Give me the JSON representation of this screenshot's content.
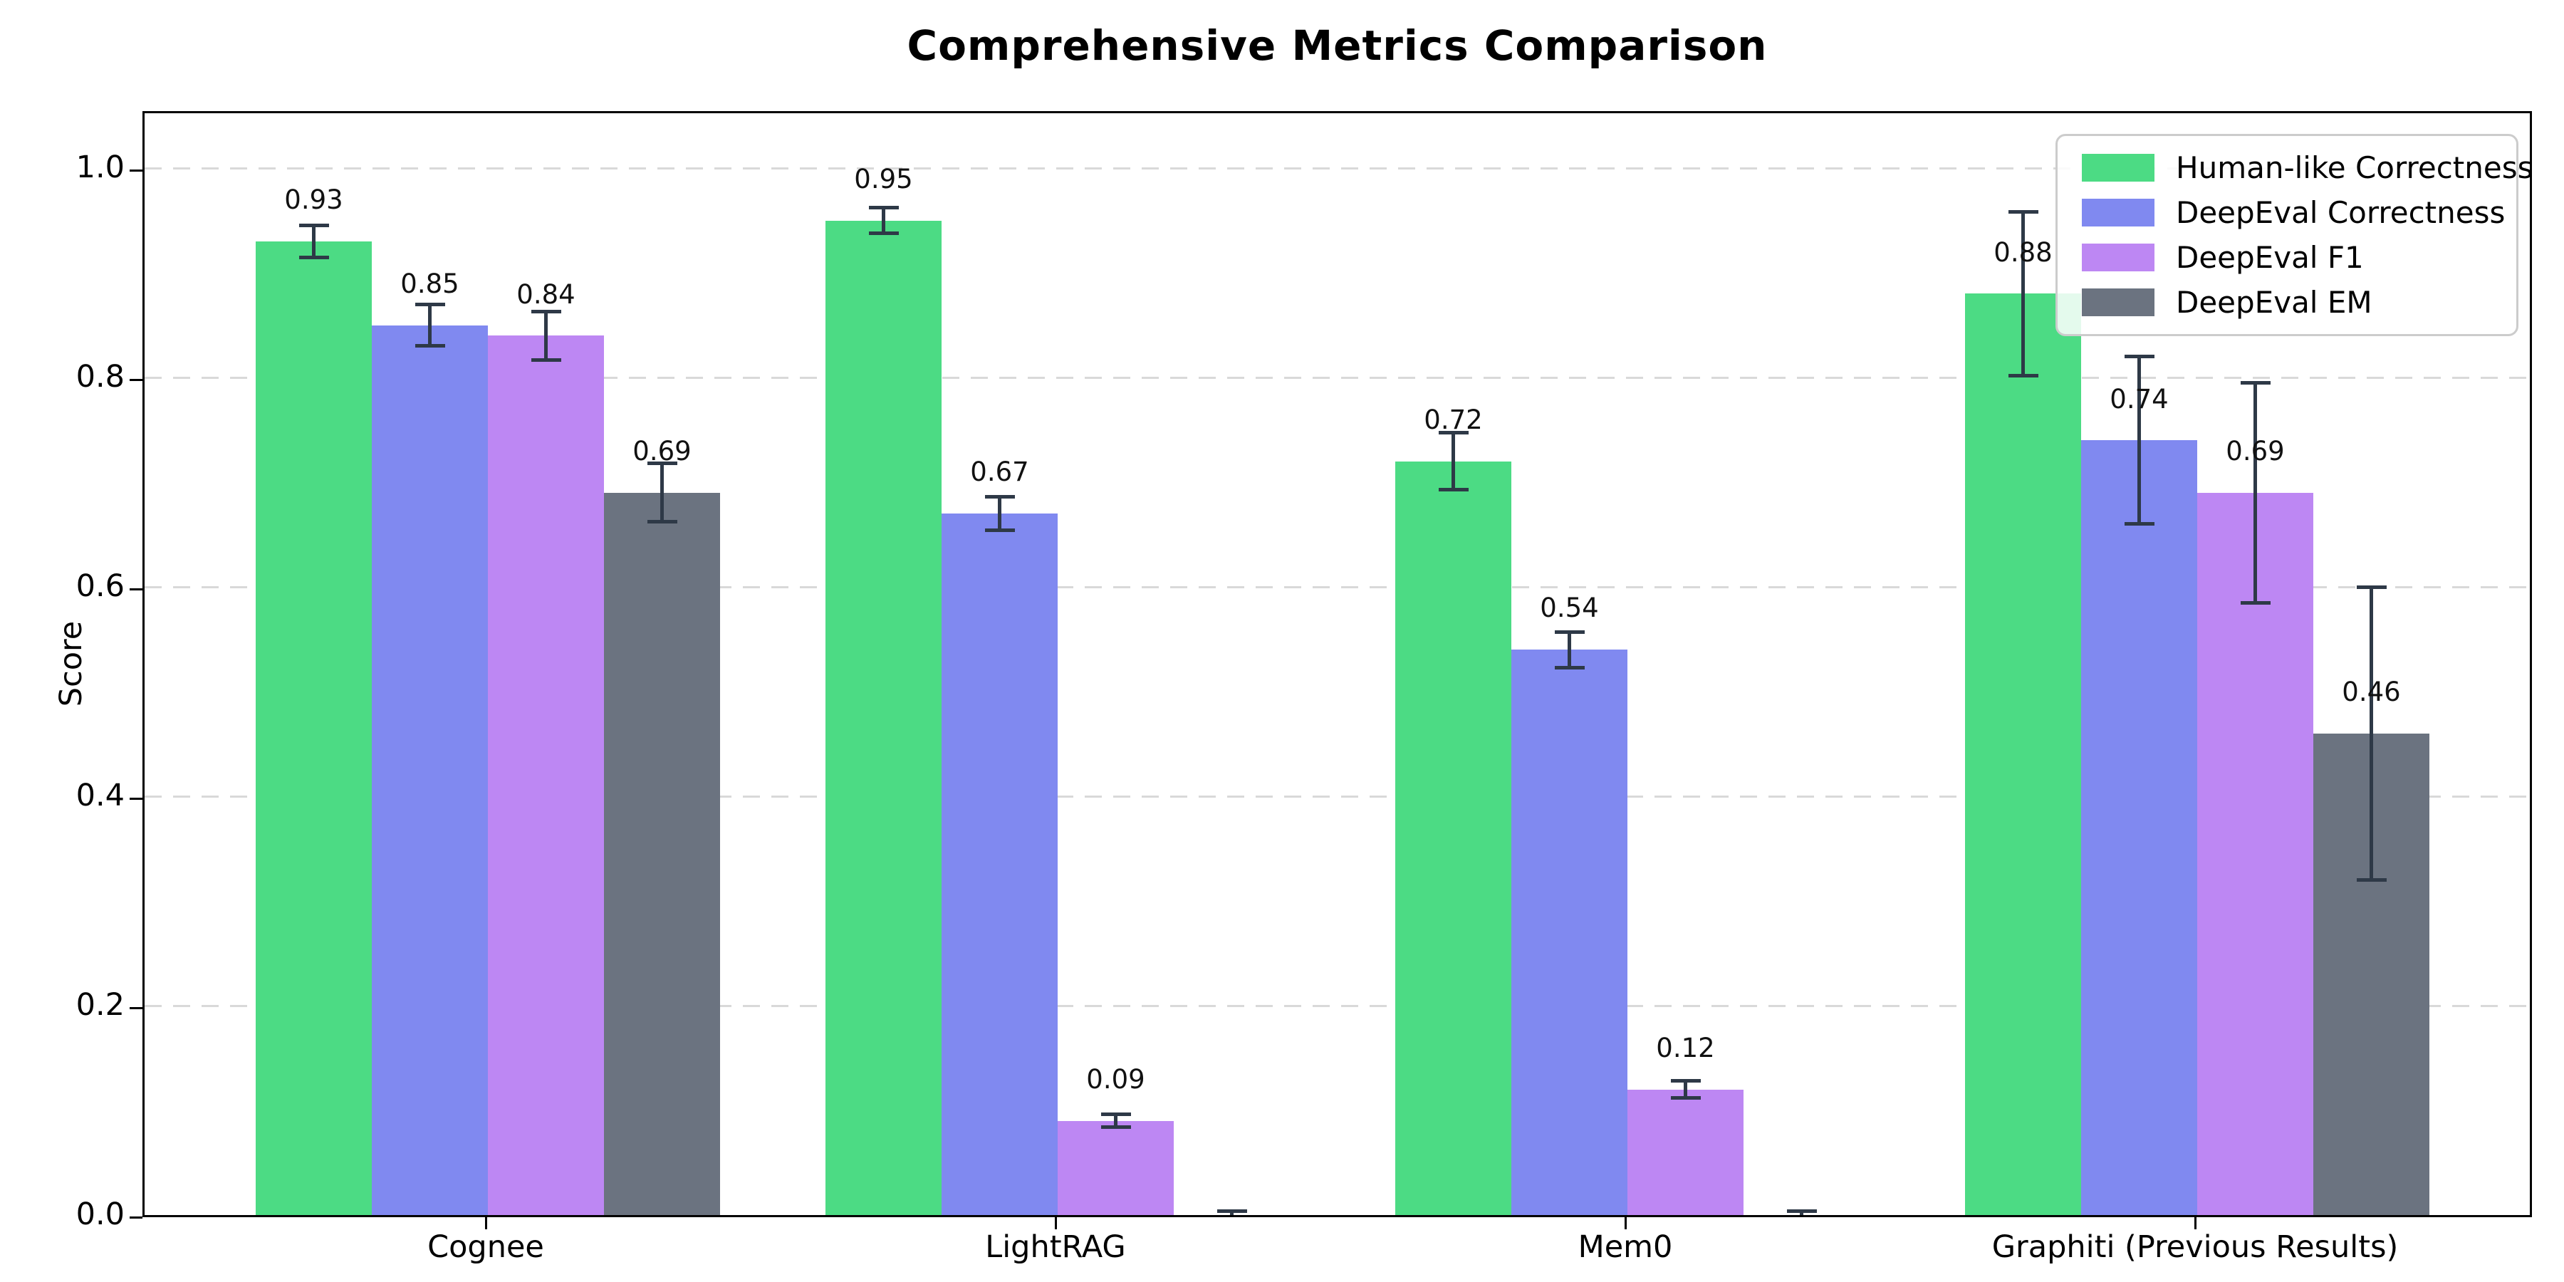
{
  "chart_data": {
    "type": "bar",
    "title": "Comprehensive Metrics Comparison",
    "ylabel": "Score",
    "xlabel": "",
    "categories": [
      "Cognee",
      "LightRAG",
      "Mem0",
      "Graphiti (Previous Results)"
    ],
    "series": [
      {
        "name": "Human-like Correctness",
        "color": "#4cdb84",
        "values": [
          0.93,
          0.95,
          0.72,
          0.88
        ],
        "errors": [
          0.015,
          0.012,
          0.027,
          0.078
        ],
        "labels": [
          "0.93",
          "0.95",
          "0.72",
          "0.88"
        ]
      },
      {
        "name": "DeepEval Correctness",
        "color": "#8089f0",
        "values": [
          0.85,
          0.67,
          0.54,
          0.74
        ],
        "errors": [
          0.02,
          0.016,
          0.017,
          0.08
        ],
        "labels": [
          "0.85",
          "0.67",
          "0.54",
          "0.74"
        ]
      },
      {
        "name": "DeepEval F1",
        "color": "#bd87f3",
        "values": [
          0.84,
          0.09,
          0.12,
          0.69
        ],
        "errors": [
          0.023,
          0.006,
          0.008,
          0.105
        ],
        "labels": [
          "0.84",
          "0.09",
          "0.12",
          "0.69"
        ]
      },
      {
        "name": "DeepEval EM",
        "color": "#6b7380",
        "values": [
          0.69,
          0.0,
          0.0,
          0.46
        ],
        "errors": [
          0.028,
          0.004,
          0.004,
          0.14
        ],
        "labels": [
          "0.69",
          "",
          "",
          "0.46"
        ]
      }
    ],
    "ytick_labels": [
      "0.0",
      "0.2",
      "0.4",
      "0.6",
      "0.8",
      "1.0"
    ],
    "ytick_values": [
      0,
      0.2,
      0.4,
      0.6,
      0.8,
      1.0
    ],
    "ylim": [
      0,
      1.0565
    ],
    "grid": {
      "axis": "y",
      "style": "dashed",
      "color": "#d9d9d9"
    },
    "legend": {
      "position": "upper-right"
    },
    "colors": {
      "error_bar": "#2e3947",
      "spine": "#000000",
      "title": "#000000",
      "text": "#111111"
    }
  }
}
